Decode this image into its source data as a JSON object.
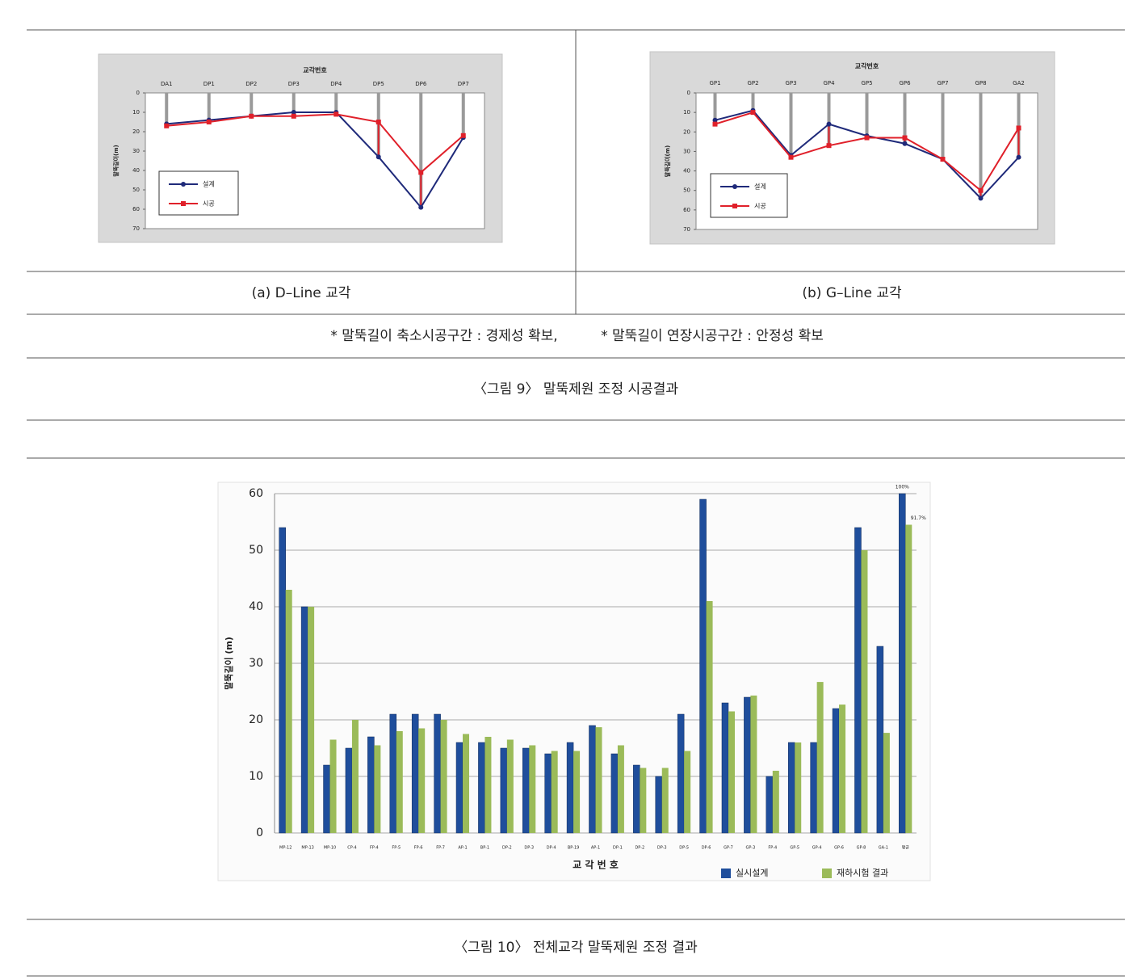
{
  "chart_data": [
    {
      "type": "line",
      "xlabel": "교각번호",
      "ylabel": "말뚝길이(m)",
      "x_axis_position": "top",
      "y_inverted": true,
      "categories": [
        "DA1",
        "DP1",
        "DP2",
        "DP3",
        "DP4",
        "DP5",
        "DP6",
        "DP7"
      ],
      "series": [
        {
          "name": "설계",
          "color": "#1f2a7a",
          "marker": "circle",
          "values": [
            16,
            14,
            12,
            10,
            10,
            33,
            59,
            23
          ]
        },
        {
          "name": "시공",
          "color": "#e0202a",
          "marker": "square",
          "values": [
            17,
            15,
            12,
            12,
            11,
            15,
            41,
            22
          ]
        }
      ],
      "ylim": [
        0,
        70
      ],
      "yticks": [
        0,
        10,
        20,
        30,
        40,
        50,
        60,
        70
      ],
      "legend": "lower left"
    },
    {
      "type": "line",
      "xlabel": "교각번호",
      "ylabel": "말뚝길이(m)",
      "x_axis_position": "top",
      "y_inverted": true,
      "categories": [
        "GP1",
        "GP2",
        "GP3",
        "GP4",
        "GP5",
        "GP6",
        "GP7",
        "GP8",
        "GA2"
      ],
      "series": [
        {
          "name": "설계",
          "color": "#1f2a7a",
          "marker": "circle",
          "values": [
            14,
            9,
            32,
            16,
            22,
            26,
            34,
            54,
            33
          ]
        },
        {
          "name": "시공",
          "color": "#e0202a",
          "marker": "square",
          "values": [
            16,
            10,
            33,
            27,
            23,
            23,
            34,
            50,
            18
          ]
        }
      ],
      "ylim": [
        0,
        70
      ],
      "yticks": [
        0,
        10,
        20,
        30,
        40,
        50,
        60,
        70
      ],
      "legend": "lower left"
    },
    {
      "type": "bar",
      "xlabel": "교 각 번 호",
      "ylabel": "말뚝길이 (m)",
      "categories": [
        "MP-12",
        "MP-13",
        "MP-10",
        "CP-4",
        "FP-4",
        "FP-5",
        "FP-6",
        "FP-7",
        "AP-1",
        "BP-1",
        "DP-2",
        "DP-3",
        "DP-4",
        "BP-19",
        "AP-1",
        "DP-1",
        "DP-2",
        "DP-3",
        "DP-5",
        "DP-6",
        "GP-7",
        "GP-3",
        "FP-4",
        "GP-5",
        "GP-4",
        "GP-6",
        "GP-8",
        "GA-1",
        "평균"
      ],
      "series": [
        {
          "name": "실시설계",
          "color": "#1f4e9c",
          "values": [
            54,
            40,
            12,
            15,
            17,
            21,
            21,
            21,
            16,
            16,
            15,
            15,
            14,
            16,
            19,
            14,
            12,
            10,
            21,
            59,
            23,
            24,
            10,
            16,
            16,
            22,
            54,
            33,
            60
          ]
        },
        {
          "name": "재하시험 결과",
          "color": "#9bbb59",
          "values": [
            43,
            40,
            16.5,
            20,
            15.5,
            18,
            18.5,
            20,
            17.5,
            17,
            16.5,
            15.5,
            14.5,
            14.5,
            18.7,
            15.5,
            11.5,
            11.5,
            14.5,
            41,
            21.5,
            24.3,
            11,
            16,
            26.7,
            22.7,
            50,
            17.7,
            54.5
          ]
        }
      ],
      "annotations": [
        "100%",
        "91.7%"
      ],
      "ylim": [
        0,
        60
      ],
      "yticks": [
        0,
        10,
        20,
        30,
        40,
        50,
        60
      ],
      "grid": true,
      "legend": "lower right"
    }
  ],
  "panel_captions": [
    "(a) D–Line 교각",
    "(b) G–Line 교각"
  ],
  "notes": [
    "* 말뚝길이 축소시공구간 : 경제성 확보,",
    "* 말뚝길이 연장시공구간 : 안정성 확보"
  ],
  "figure9_caption": "〈그림 9〉 말뚝제원 조정 시공결과",
  "figure10_caption": "〈그림 10〉 전체교각 말뚝제원 조정 결과"
}
